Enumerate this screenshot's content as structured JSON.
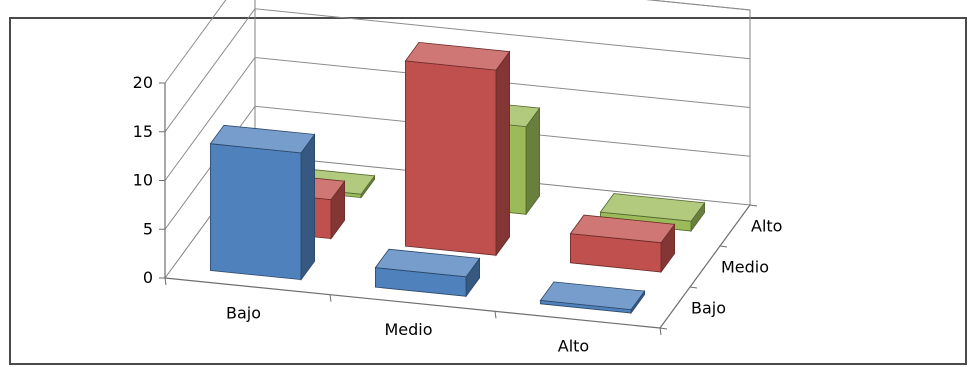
{
  "chart_data": {
    "type": "bar",
    "subtype": "3d-column",
    "title": "",
    "xlabel": "",
    "ylabel": "",
    "categories": [
      "Bajo",
      "Medio",
      "Alto"
    ],
    "depth_categories": [
      "Bajo",
      "Medio",
      "Alto"
    ],
    "ylim": [
      0,
      20
    ],
    "yticks": [
      "0",
      "5",
      "10",
      "15",
      "20"
    ],
    "grid": true,
    "legend": "none",
    "series": [
      {
        "name": "Bajo",
        "color": "#4f81bd",
        "values": [
          13,
          2,
          0
        ]
      },
      {
        "name": "Medio",
        "color": "#c0504d",
        "values": [
          4,
          19,
          3
        ]
      },
      {
        "name": "Alto",
        "color": "#9bbb59",
        "values": [
          0,
          9,
          1
        ]
      }
    ]
  }
}
